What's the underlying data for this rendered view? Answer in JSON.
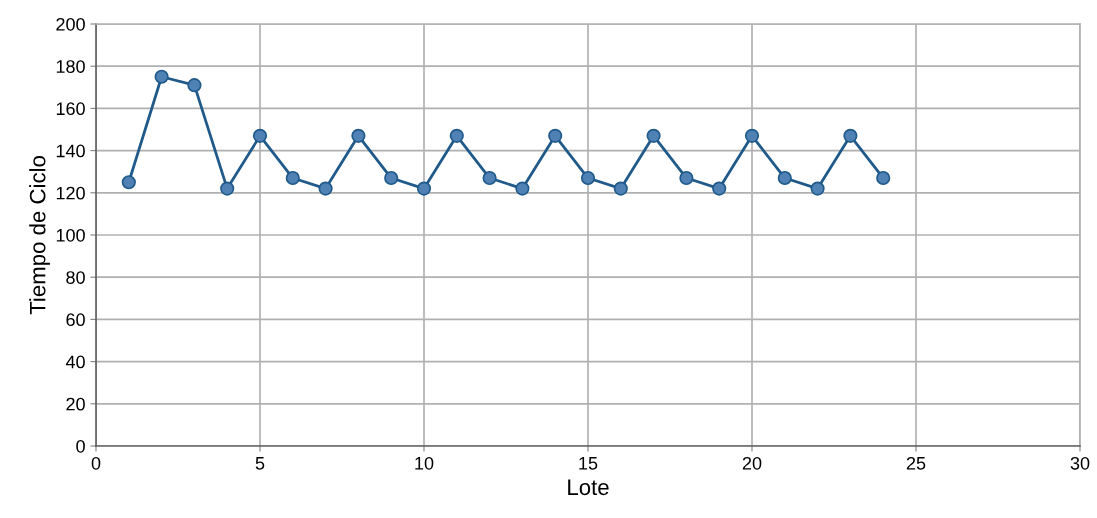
{
  "chart_data": {
    "type": "line",
    "xlabel": "Lote",
    "ylabel": "Tiempo de Ciclo",
    "x": [
      1,
      2,
      3,
      4,
      5,
      6,
      7,
      8,
      9,
      10,
      11,
      12,
      13,
      14,
      15,
      16,
      17,
      18,
      19,
      20,
      21,
      22,
      23,
      24
    ],
    "series": [
      {
        "color": "#1f5a8a",
        "values": [
          125,
          175,
          171,
          122,
          147,
          127,
          122,
          147,
          127,
          122,
          147,
          127,
          122,
          147,
          127,
          122,
          147,
          127,
          122,
          147,
          127,
          122,
          147,
          127
        ]
      }
    ],
    "xlim": [
      0,
      30
    ],
    "xticks": [
      0,
      5,
      10,
      15,
      20,
      25,
      30
    ],
    "ylim": [
      0,
      200
    ],
    "yticks": [
      0,
      20,
      40,
      60,
      80,
      100,
      120,
      140,
      160,
      180,
      200
    ],
    "grid": true,
    "marker": "circle",
    "line_style": "solid"
  }
}
